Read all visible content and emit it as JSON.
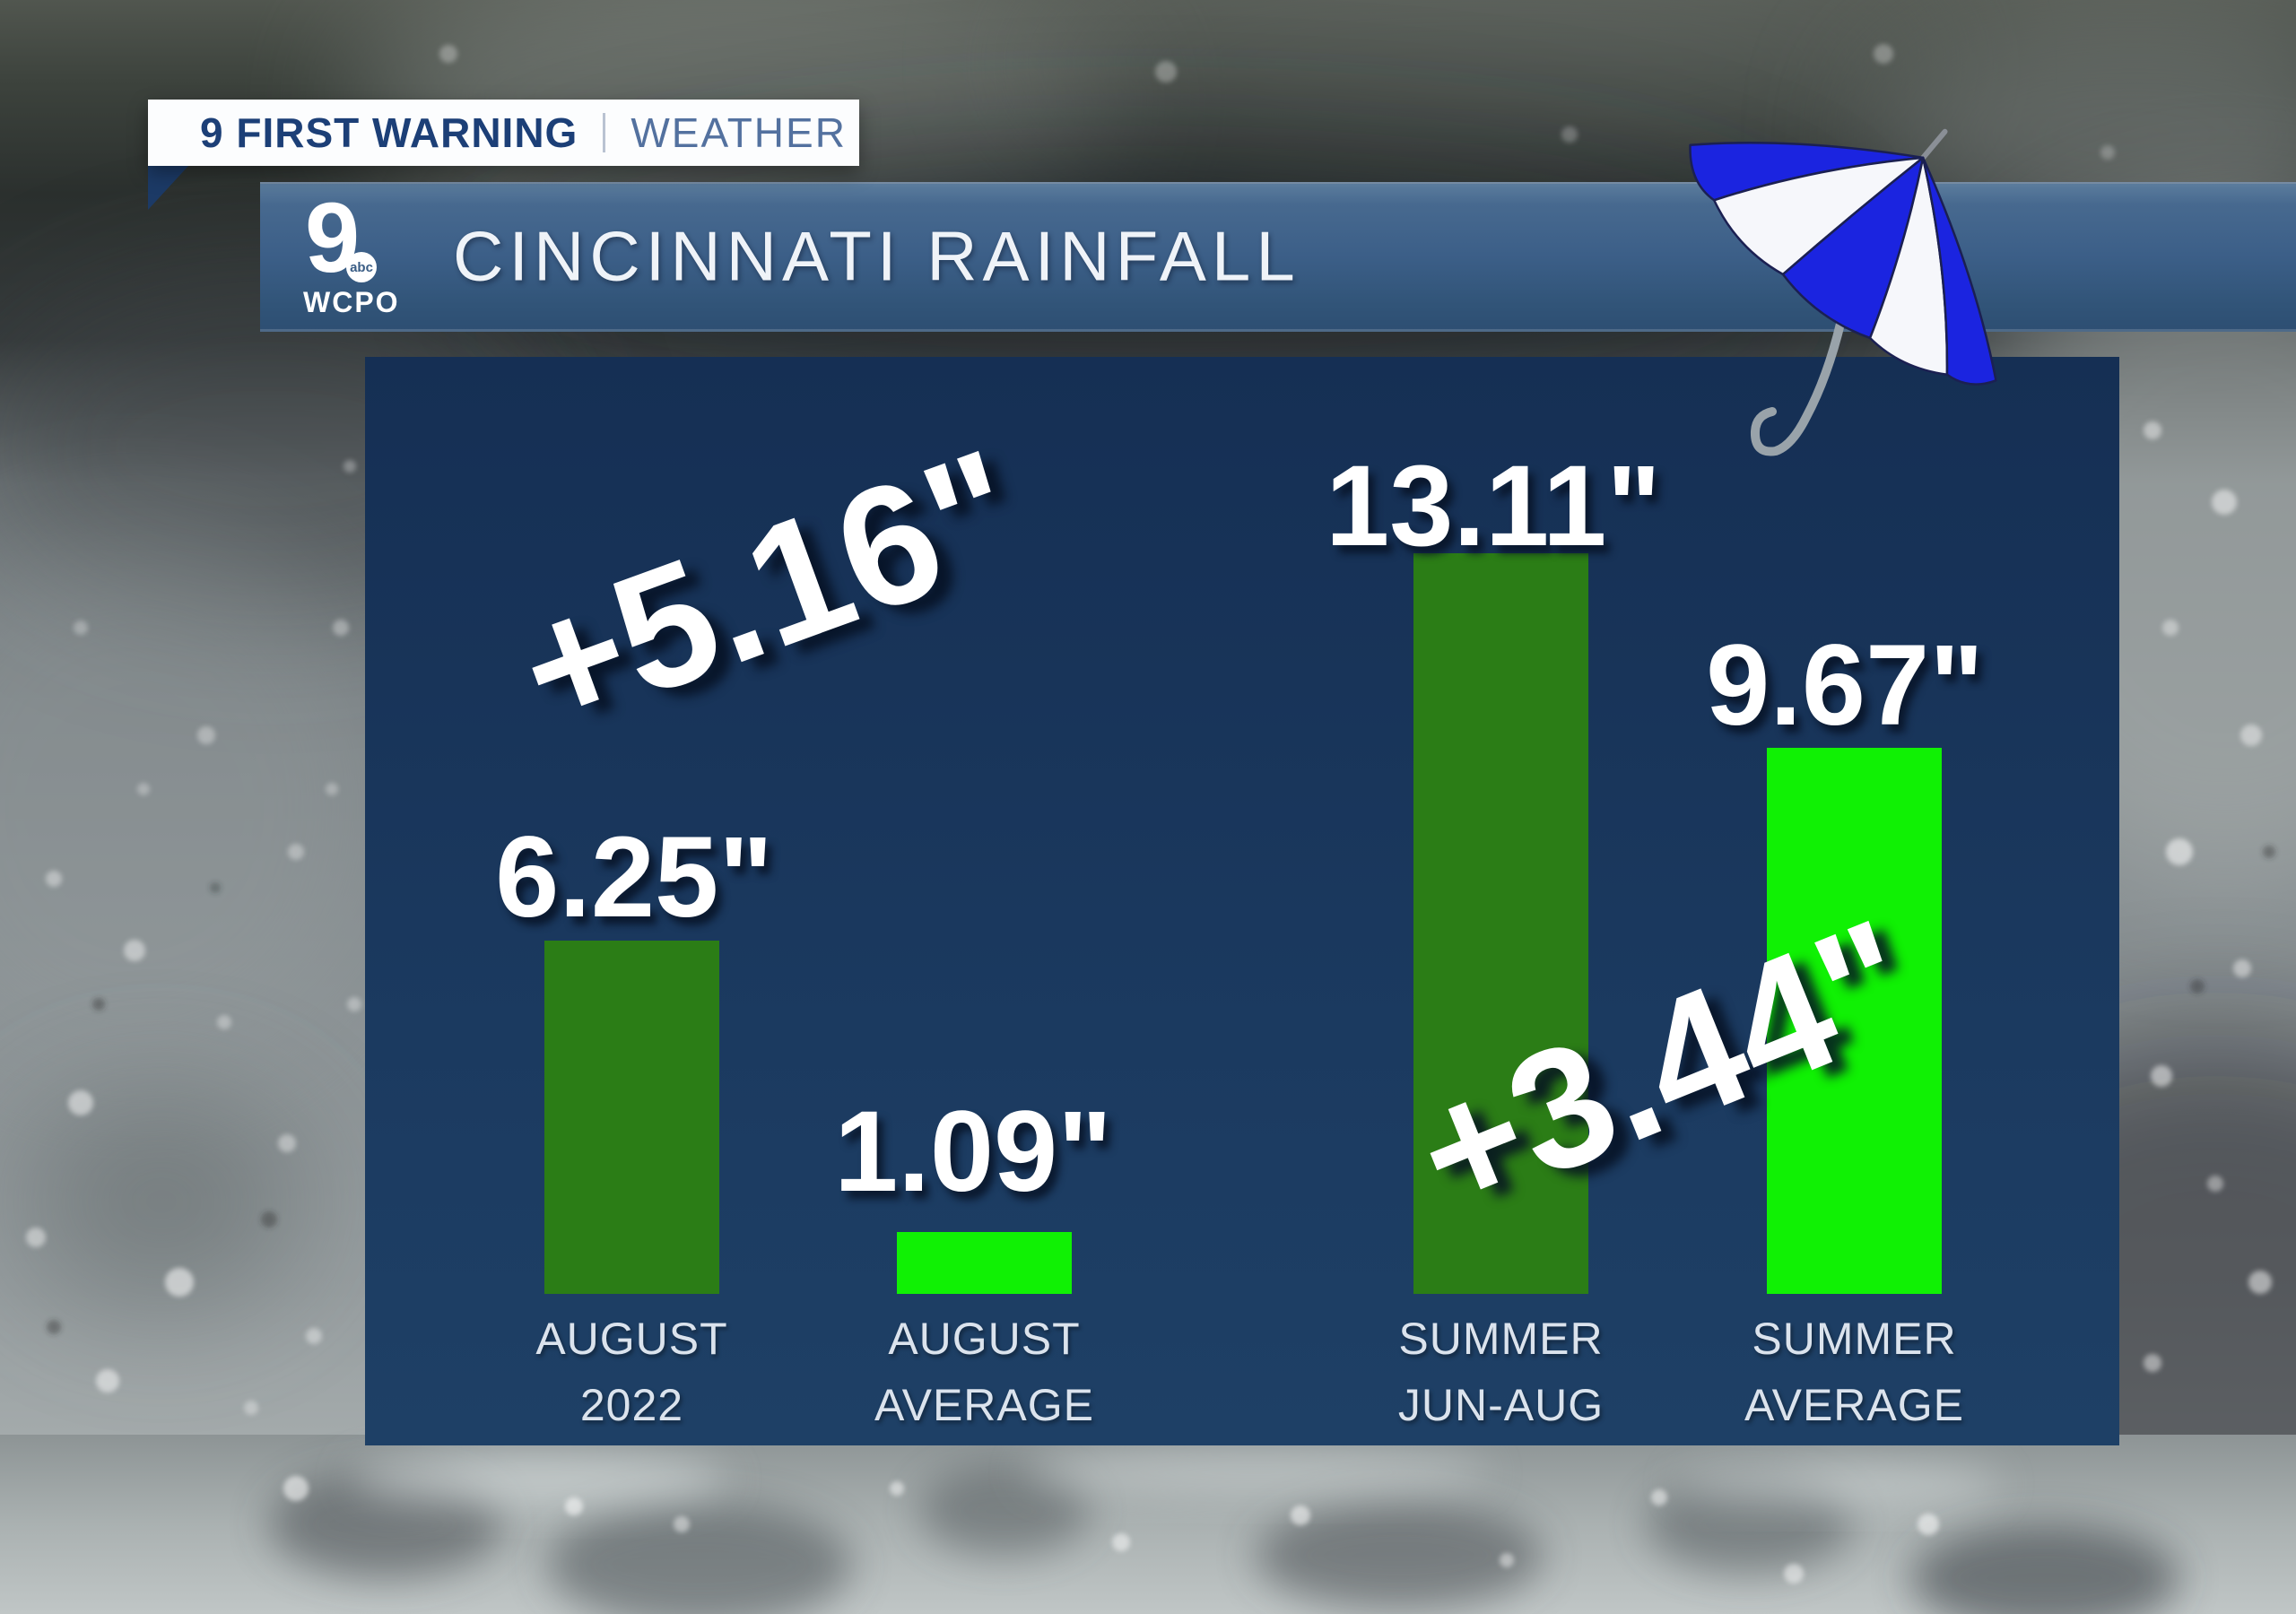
{
  "badge": {
    "primary": "9 FIRST WARNING",
    "secondary": "WEATHER"
  },
  "banner": {
    "title": "CINCINNATI RAINFALL",
    "logo": {
      "channel_number": "9",
      "network": "abc",
      "station": "WCPO"
    }
  },
  "chart_data": {
    "type": "bar",
    "title": "CINCINNATI RAINFALL",
    "unit": "inches",
    "categories": [
      "AUGUST 2022",
      "AUGUST AVERAGE",
      "SUMMER JUN-AUG",
      "SUMMER AVERAGE"
    ],
    "category_lines": [
      [
        "AUGUST",
        "2022"
      ],
      [
        "AUGUST",
        "AVERAGE"
      ],
      [
        "SUMMER",
        "JUN-AUG"
      ],
      [
        "SUMMER",
        "AVERAGE"
      ]
    ],
    "values": [
      6.25,
      1.09,
      13.11,
      9.67
    ],
    "value_labels": [
      "6.25\"",
      "1.09\"",
      "13.11\"",
      "9.67\""
    ],
    "bar_colors": [
      "#2b7d16",
      "#10f104",
      "#2b7d16",
      "#10f104"
    ],
    "annotations": [
      {
        "text": "+5.16\""
      },
      {
        "text": "+3.44\""
      }
    ],
    "ylim": [
      0,
      14
    ],
    "grid": false,
    "legend": false
  },
  "colors": {
    "panel_navy": "#183459",
    "banner_blue": "#3c5f88",
    "bar_dark_green": "#2b7d16",
    "bar_bright_green": "#10f104",
    "badge_navy_text": "#1c3f77",
    "badge_weather_text": "#53719f",
    "umbrella_blue": "#1b24e0",
    "umbrella_white": "#f6f7fb"
  }
}
